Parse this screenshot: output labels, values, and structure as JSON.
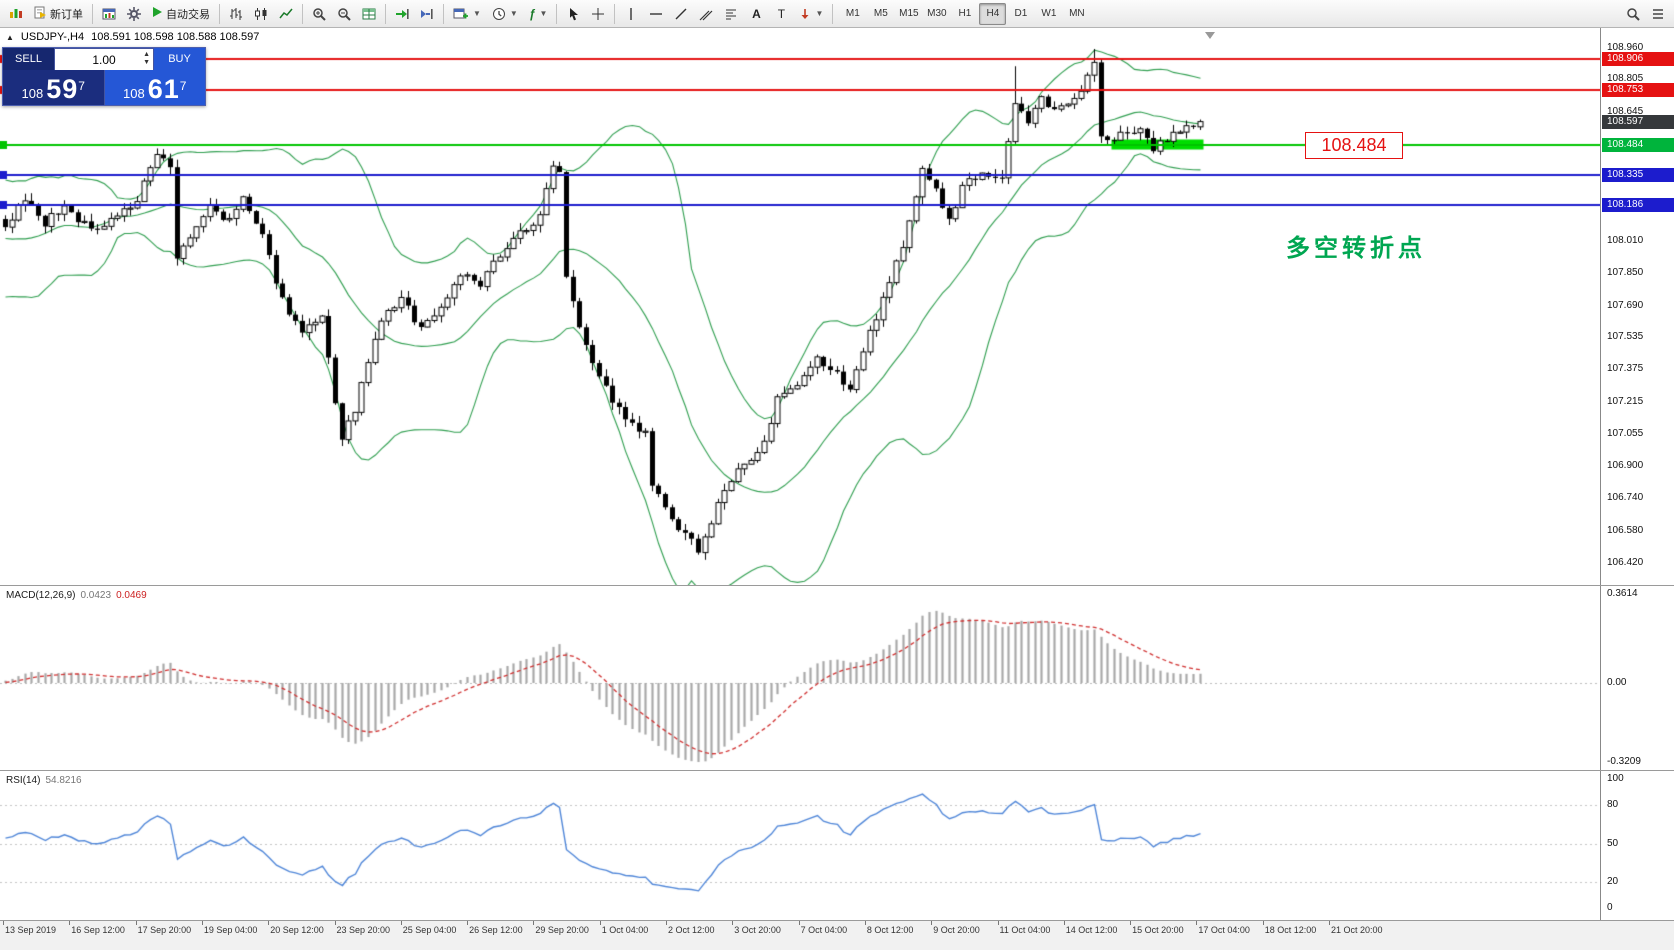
{
  "toolbar": {
    "new_order_label": "新订单",
    "autotrading_label": "自动交易",
    "timeframes": [
      "M1",
      "M5",
      "M15",
      "M30",
      "H1",
      "H4",
      "D1",
      "W1",
      "MN"
    ],
    "active_timeframe": "H4",
    "icons": {
      "app-logo": "candlestick-chart",
      "new-order": "order-ticket",
      "charts": "chart-window",
      "experts": "gear",
      "autotrading": "play-triangle",
      "bars": "ohlc-bars",
      "candles": "candlesticks",
      "line-chart": "polyline",
      "zoom-in": "magnifier-plus",
      "zoom-out": "magnifier-minus",
      "tile-windows": "grid-table",
      "auto-scroll": "arrow-to-edge",
      "chart-shift": "arrow-shift",
      "new-chart": "window-plus",
      "periods": "clock",
      "indicators": "function-f",
      "cursor": "pointer-arrow",
      "crosshair": "cross",
      "vertical-line": "vline",
      "horizontal-line": "hline",
      "trendline": "diagonal-line",
      "channel": "parallel-lines",
      "fibonacci": "fibo-lines",
      "text": "A",
      "text-label": "T",
      "arrows-tool": "arrow-marker",
      "search": "magnifier",
      "symbols": "list-rows"
    }
  },
  "chart": {
    "header": {
      "collapse_arrow": "▲",
      "symbol_period": "USDJPY-,H4",
      "ohlc": "108.591 108.598 108.588 108.597"
    },
    "trade_panel": {
      "sell_label": "SELL",
      "buy_label": "BUY",
      "volume": "1.00",
      "sell_price_int": "108",
      "sell_price_main": "59",
      "sell_price_sup": "7",
      "buy_price_int": "108",
      "buy_price_main": "61",
      "buy_price_sup": "7"
    },
    "price_tag": "108.484",
    "annotation": "多空转折点",
    "axis": {
      "plain_labels": [
        "108.960",
        "108.805",
        "108.645",
        "108.010",
        "107.850",
        "107.690",
        "107.535",
        "107.375",
        "107.215",
        "107.055",
        "106.900",
        "106.740",
        "106.580",
        "106.420"
      ],
      "badges": [
        {
          "text": "108.906",
          "style": "red"
        },
        {
          "text": "108.753",
          "style": "red"
        },
        {
          "text": "108.597",
          "style": "dark"
        },
        {
          "text": "108.484",
          "style": "green"
        },
        {
          "text": "108.335",
          "style": "blue"
        },
        {
          "text": "108.186",
          "style": "blue"
        }
      ]
    }
  },
  "macd": {
    "label": "MACD(12,26,9)",
    "value1": "0.0423",
    "value2": "0.0469",
    "axis": [
      "0.3614",
      "0.00",
      "-0.3209"
    ]
  },
  "rsi": {
    "label": "RSI(14)",
    "value": "54.8216",
    "axis": [
      {
        "text": "100",
        "value": 100
      },
      {
        "text": "80",
        "value": 80
      },
      {
        "text": "50",
        "value": 50
      },
      {
        "text": "20",
        "value": 20
      },
      {
        "text": "0",
        "value": 0
      }
    ],
    "levels": [
      80,
      50,
      20
    ]
  },
  "time_axis": [
    "13 Sep 2019",
    "16 Sep 12:00",
    "17 Sep 20:00",
    "19 Sep 04:00",
    "20 Sep 12:00",
    "23 Sep 20:00",
    "25 Sep 04:00",
    "26 Sep 12:00",
    "29 Sep 20:00",
    "1 Oct 04:00",
    "2 Oct 12:00",
    "3 Oct 20:00",
    "7 Oct 04:00",
    "8 Oct 12:00",
    "9 Oct 20:00",
    "11 Oct 04:00",
    "14 Oct 12:00",
    "15 Oct 20:00",
    "17 Oct 04:00",
    "18 Oct 12:00",
    "21 Oct 20:00"
  ],
  "colors": {
    "resistance_line": "#e51212",
    "support_line": "#1c1ccd",
    "pivot_line": "#00c400",
    "zone_highlight": "#00dd00",
    "annotation_green": "#00a651",
    "bollinger": "#2f9e4f",
    "bull_candle": "#ffffff",
    "bear_candle": "#000000",
    "macd_histogram": "#a8a8a8",
    "macd_signal": "#d03030",
    "rsi_line": "#4f86d8",
    "sell_navy": "#1b2d7e",
    "buy_blue": "#2557d6"
  },
  "chart_data": {
    "type": "candlestick",
    "symbol": "USDJPY",
    "timeframe": "H4",
    "price_range": [
      106.42,
      108.96
    ],
    "candle_count": 182,
    "candle_spacing": 6.6,
    "seed": 9,
    "last_close": 108.597,
    "anchors": [
      [
        0,
        108.06
      ],
      [
        3,
        108.22
      ],
      [
        6,
        108.1
      ],
      [
        9,
        108.18
      ],
      [
        13,
        108.06
      ],
      [
        17,
        108.14
      ],
      [
        20,
        108.2
      ],
      [
        23,
        108.45
      ],
      [
        25,
        108.38
      ],
      [
        26,
        107.92
      ],
      [
        28,
        108.02
      ],
      [
        31,
        108.18
      ],
      [
        34,
        108.1
      ],
      [
        36,
        108.22
      ],
      [
        39,
        108.02
      ],
      [
        42,
        107.72
      ],
      [
        45,
        107.55
      ],
      [
        48,
        107.62
      ],
      [
        51,
        107.02
      ],
      [
        53,
        107.18
      ],
      [
        55,
        107.4
      ],
      [
        57,
        107.62
      ],
      [
        60,
        107.72
      ],
      [
        63,
        107.58
      ],
      [
        66,
        107.68
      ],
      [
        69,
        107.85
      ],
      [
        72,
        107.78
      ],
      [
        75,
        107.95
      ],
      [
        78,
        108.05
      ],
      [
        81,
        108.12
      ],
      [
        83,
        108.4
      ],
      [
        84,
        108.35
      ],
      [
        85,
        107.85
      ],
      [
        87,
        107.6
      ],
      [
        89,
        107.42
      ],
      [
        91,
        107.28
      ],
      [
        94,
        107.12
      ],
      [
        97,
        107.05
      ],
      [
        98,
        106.8
      ],
      [
        100,
        106.68
      ],
      [
        103,
        106.55
      ],
      [
        105,
        106.49
      ],
      [
        107,
        106.62
      ],
      [
        109,
        106.78
      ],
      [
        111,
        106.87
      ],
      [
        114,
        106.95
      ],
      [
        117,
        107.22
      ],
      [
        120,
        107.28
      ],
      [
        123,
        107.42
      ],
      [
        126,
        107.35
      ],
      [
        128,
        107.28
      ],
      [
        131,
        107.55
      ],
      [
        134,
        107.82
      ],
      [
        136,
        107.98
      ],
      [
        138,
        108.22
      ],
      [
        139,
        108.38
      ],
      [
        141,
        108.26
      ],
      [
        143,
        108.1
      ],
      [
        145,
        108.28
      ],
      [
        148,
        108.36
      ],
      [
        151,
        108.3
      ],
      [
        153,
        108.7
      ],
      [
        155,
        108.6
      ],
      [
        157,
        108.7
      ],
      [
        159,
        108.64
      ],
      [
        161,
        108.7
      ],
      [
        163,
        108.76
      ],
      [
        165,
        108.88
      ],
      [
        166,
        108.52
      ],
      [
        168,
        108.5
      ],
      [
        170,
        108.56
      ],
      [
        172,
        108.54
      ],
      [
        174,
        108.46
      ],
      [
        176,
        108.52
      ],
      [
        178,
        108.56
      ],
      [
        180,
        108.58
      ],
      [
        181,
        108.597
      ]
    ],
    "forced_highs": [
      [
        153,
        108.87
      ],
      [
        165,
        108.955
      ]
    ],
    "horizontal_lines": [
      {
        "price": 108.906,
        "role": "resistance",
        "color": "#e51212",
        "width": 2
      },
      {
        "price": 108.753,
        "role": "resistance",
        "color": "#e51212",
        "width": 2
      },
      {
        "price": 108.484,
        "role": "pivot",
        "color": "#00c400",
        "width": 2
      },
      {
        "price": 108.335,
        "role": "support",
        "color": "#1c1ccd",
        "width": 2
      },
      {
        "price": 108.186,
        "role": "support",
        "color": "#1c1ccd",
        "width": 2
      }
    ],
    "zone": {
      "from_index": 168,
      "to_index": 181,
      "price": 108.484,
      "color": "#00dd00"
    },
    "indicators": {
      "bollinger_bands": [
        20,
        2
      ],
      "macd": [
        12,
        26,
        9
      ],
      "rsi": [
        14
      ]
    }
  }
}
